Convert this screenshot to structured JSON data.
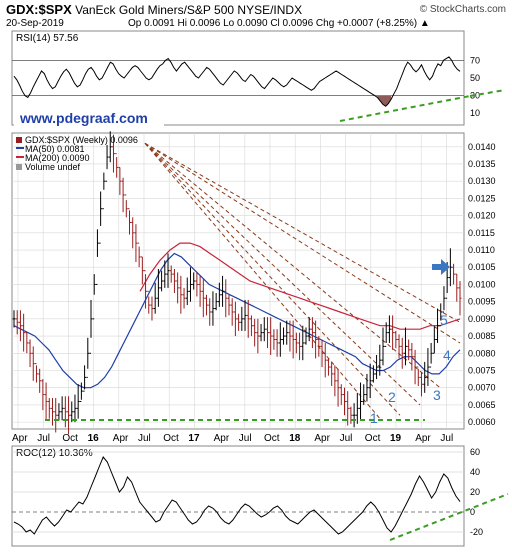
{
  "header": {
    "symbol": "GDX:$SPX",
    "title": "VanEck Gold Miners/S&P 500 NYSE/INDX",
    "brand": "© StockCharts.com",
    "date": "20-Sep-2019",
    "quote": "Op 0.0091  Hi 0.0096  Lo 0.0090  Cl 0.0096  Chg +0.0007 (+8.25%) ▲"
  },
  "website": "www.pdegraaf.com",
  "colors": {
    "price": "#9b1c1c",
    "ma50": "#1f3fa8",
    "ma200": "#c8243a",
    "trendline": "#8b3a1a",
    "green_dash": "#3a9d23",
    "annot": "#3a77c2",
    "line": "#000000",
    "grid": "#d8d8d8",
    "rsi_fill": "#8e5a5a"
  },
  "chart_data": [
    {
      "type": "line",
      "panel": "rsi",
      "title": "RSI(14) 57.56",
      "ylim": [
        0,
        100
      ],
      "reference_lines": [
        30,
        70
      ],
      "y_ticks": [
        "70",
        "50",
        "30",
        "10"
      ],
      "values": [
        52,
        48,
        42,
        35,
        30,
        28,
        33,
        40,
        46,
        52,
        58,
        55,
        48,
        42,
        38,
        40,
        46,
        52,
        57,
        60,
        56,
        50,
        44,
        40,
        42,
        48,
        55,
        60,
        62,
        58,
        52,
        48,
        50,
        56,
        62,
        68,
        66,
        60,
        55,
        52,
        50,
        54,
        58,
        62,
        64,
        62,
        58,
        54,
        50,
        48,
        50,
        55,
        60,
        64,
        66,
        70,
        72,
        68,
        62,
        58,
        62,
        66,
        68,
        64,
        60,
        56,
        52,
        50,
        54,
        58,
        62,
        60,
        56,
        52,
        48,
        44,
        42,
        46,
        50,
        54,
        58,
        56,
        52,
        48,
        46,
        50,
        54,
        52,
        48,
        44,
        40,
        38,
        42,
        46,
        50,
        48,
        45,
        42,
        40,
        42,
        46,
        50,
        48,
        46,
        44,
        42,
        40,
        38,
        36,
        38,
        42,
        46,
        48,
        50,
        52,
        54,
        56,
        58,
        56,
        54,
        52,
        50,
        48,
        46,
        44,
        42,
        40,
        38,
        36,
        34,
        32,
        30,
        28,
        24,
        20,
        18,
        21,
        26,
        32,
        38,
        46,
        54,
        62,
        68,
        65,
        60,
        57,
        60,
        65,
        58,
        52,
        48,
        52,
        60,
        66,
        64,
        70,
        72,
        74,
        70,
        64,
        60,
        57.56
      ]
    },
    {
      "type": "line",
      "panel": "price",
      "title": "GDX:$SPX (Weekly) 0.0096",
      "xlabel": "",
      "ylabel": "",
      "ylim": [
        0.0058,
        0.0144
      ],
      "x_ticks": [
        "Apr",
        "Jul",
        "Oct",
        "16",
        "Apr",
        "Jul",
        "Oct",
        "17",
        "Apr",
        "Jul",
        "Oct",
        "18",
        "Apr",
        "Jul",
        "Oct",
        "19",
        "Apr",
        "Jul"
      ],
      "y_ticks": [
        "0.0140",
        "0.0135",
        "0.0130",
        "0.0125",
        "0.0120",
        "0.0115",
        "0.0110",
        "0.0105",
        "0.0100",
        "0.0095",
        "0.0090",
        "0.0085",
        "0.0080",
        "0.0075",
        "0.0070",
        "0.0065",
        "0.0060"
      ],
      "legend": [
        {
          "name": "GDX:$SPX (Weekly) 0.0096"
        },
        {
          "name": "MA(50) 0.0081"
        },
        {
          "name": "MA(200) 0.0090"
        },
        {
          "name": "Volume undef"
        }
      ],
      "price_values": [
        0.009,
        0.0089,
        0.0088,
        0.0086,
        0.0083,
        0.008,
        0.0077,
        0.0074,
        0.0072,
        0.0068,
        0.0066,
        0.0064,
        0.0063,
        0.0062,
        0.0063,
        0.0064,
        0.0063,
        0.0062,
        0.0063,
        0.0064,
        0.0066,
        0.0069,
        0.0073,
        0.008,
        0.009,
        0.01,
        0.0112,
        0.0122,
        0.013,
        0.0137,
        0.014,
        0.0138,
        0.0134,
        0.013,
        0.0126,
        0.0122,
        0.0118,
        0.0115,
        0.0112,
        0.0108,
        0.0104,
        0.0098,
        0.0094,
        0.0093,
        0.0096,
        0.0099,
        0.0101,
        0.0103,
        0.0104,
        0.0103,
        0.0101,
        0.0099,
        0.0097,
        0.0096,
        0.0098,
        0.01,
        0.0101,
        0.01,
        0.0098,
        0.0096,
        0.0094,
        0.0092,
        0.0093,
        0.0095,
        0.0097,
        0.0098,
        0.0096,
        0.0094,
        0.0092,
        0.009,
        0.0089,
        0.009,
        0.0091,
        0.009,
        0.0088,
        0.0086,
        0.0085,
        0.0086,
        0.0087,
        0.0086,
        0.0085,
        0.0084,
        0.0083,
        0.0084,
        0.0085,
        0.0086,
        0.0085,
        0.0084,
        0.0083,
        0.0082,
        0.0083,
        0.0085,
        0.0087,
        0.0086,
        0.0084,
        0.0082,
        0.008,
        0.0078,
        0.0076,
        0.0074,
        0.0072,
        0.007,
        0.0068,
        0.0066,
        0.0064,
        0.0062,
        0.0062,
        0.0064,
        0.0066,
        0.0068,
        0.007,
        0.0072,
        0.0074,
        0.0076,
        0.0078,
        0.0082,
        0.0086,
        0.0087,
        0.0086,
        0.0084,
        0.0082,
        0.008,
        0.0082,
        0.0081,
        0.0079,
        0.0076,
        0.0073,
        0.0071,
        0.0073,
        0.0076,
        0.008,
        0.0084,
        0.0088,
        0.0092,
        0.0096,
        0.0102,
        0.0105,
        0.0103,
        0.0099,
        0.0096
      ],
      "ma50_values": [
        0.0088,
        0.0087,
        0.0086,
        0.0085,
        0.0083,
        0.0081,
        0.0078,
        0.0075,
        0.0073,
        0.0071,
        0.007,
        0.007,
        0.0071,
        0.0073,
        0.0076,
        0.008,
        0.0084,
        0.0088,
        0.0092,
        0.0096,
        0.01,
        0.0104,
        0.0107,
        0.0109,
        0.0108,
        0.0106,
        0.0104,
        0.0102,
        0.01,
        0.0099,
        0.0098,
        0.0097,
        0.0096,
        0.0095,
        0.0094,
        0.0093,
        0.0092,
        0.0091,
        0.009,
        0.0089,
        0.0088,
        0.0087,
        0.0086,
        0.0085,
        0.0084,
        0.0083,
        0.0082,
        0.0081,
        0.008,
        0.0079,
        0.0077,
        0.0076,
        0.0075,
        0.0075,
        0.0076,
        0.0078,
        0.0079,
        0.0079,
        0.0077,
        0.0075,
        0.0074,
        0.0074,
        0.0076,
        0.0079,
        0.0081
      ],
      "ma200_values": [
        0.0098,
        0.0103,
        0.0107,
        0.011,
        0.0112,
        0.0112,
        0.0111,
        0.0109,
        0.0107,
        0.0105,
        0.0103,
        0.0101,
        0.01,
        0.0099,
        0.0098,
        0.0097,
        0.0096,
        0.0095,
        0.0094,
        0.0093,
        0.0092,
        0.0091,
        0.009,
        0.0089,
        0.0088,
        0.0088,
        0.0087,
        0.0087,
        0.0087,
        0.0088,
        0.0088,
        0.0089,
        0.009
      ],
      "annotations": [
        "1",
        "2",
        "3",
        "4",
        "5"
      ]
    },
    {
      "type": "line",
      "panel": "roc",
      "title": "ROC(12) 10.36%",
      "ylim": [
        -30,
        60
      ],
      "y_ticks": [
        "60",
        "40",
        "20",
        "0",
        "-20"
      ],
      "values": [
        -10,
        -12,
        -15,
        -20,
        -18,
        -22,
        -15,
        -8,
        -5,
        -10,
        -14,
        -10,
        -4,
        2,
        0,
        5,
        10,
        8,
        15,
        25,
        35,
        45,
        55,
        50,
        40,
        30,
        20,
        25,
        35,
        30,
        20,
        10,
        5,
        0,
        -5,
        -10,
        -8,
        0,
        6,
        12,
        10,
        4,
        -2,
        -8,
        -12,
        -10,
        -5,
        2,
        6,
        4,
        0,
        -6,
        -10,
        -12,
        -8,
        -2,
        4,
        8,
        6,
        2,
        -2,
        -5,
        -3,
        0,
        4,
        6,
        2,
        -4,
        -8,
        -10,
        -12,
        -8,
        -4,
        0,
        2,
        -2,
        -6,
        -10,
        -14,
        -18,
        -22,
        -20,
        -16,
        -12,
        -8,
        -4,
        0,
        6,
        10,
        6,
        0,
        -8,
        -16,
        -20,
        -14,
        -6,
        2,
        10,
        18,
        28,
        36,
        30,
        22,
        14,
        20,
        30,
        38,
        34,
        24,
        16,
        10.36
      ]
    }
  ]
}
